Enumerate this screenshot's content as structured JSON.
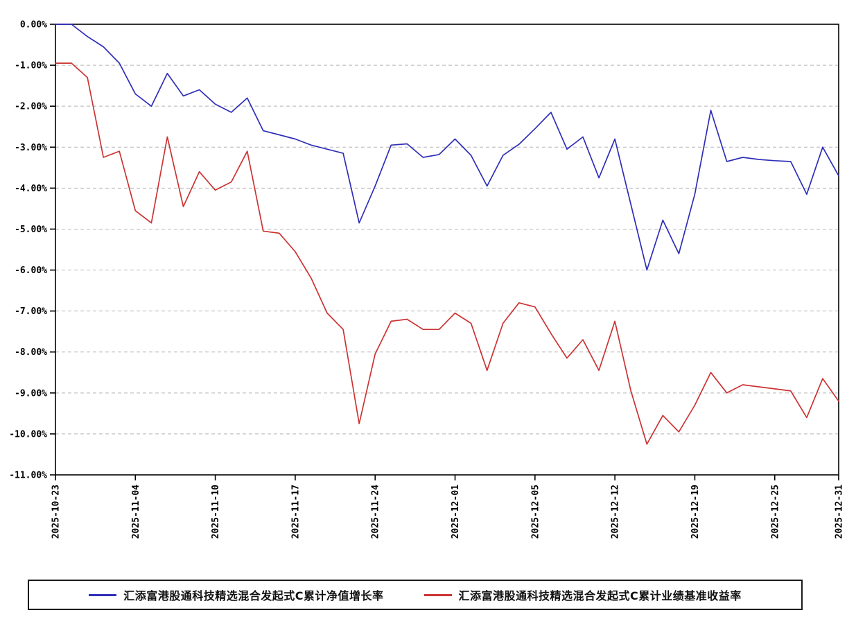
{
  "chart_data": {
    "type": "line",
    "title": "",
    "xlabel": "",
    "ylabel": "",
    "ylim": [
      -11,
      0
    ],
    "grid": "horizontal-dashed",
    "legend_position": "bottom-boxed",
    "y_tick_labels": [
      "0.00%",
      "-1.00%",
      "-2.00%",
      "-3.00%",
      "-4.00%",
      "-5.00%",
      "-6.00%",
      "-7.00%",
      "-8.00%",
      "-9.00%",
      "-10.00%",
      "-11.00%"
    ],
    "y_tick_values": [
      0,
      -1,
      -2,
      -3,
      -4,
      -5,
      -6,
      -7,
      -8,
      -9,
      -10,
      -11
    ],
    "x_tick_labels": [
      "2025-10-23",
      "2025-11-04",
      "2025-11-10",
      "2025-11-17",
      "2025-11-24",
      "2025-12-01",
      "2025-12-05",
      "2025-12-12",
      "2025-12-19",
      "2025-12-25",
      "2025-12-31"
    ],
    "x_tick_indices": [
      0,
      5,
      10,
      15,
      20,
      25,
      30,
      35,
      40,
      45,
      49
    ],
    "n_points": 50,
    "series": [
      {
        "name": "汇添富港股通科技精选混合发起式C累计净值增长率",
        "color": "#2e2eb8",
        "values": [
          0.0,
          0.0,
          -0.3,
          -0.55,
          -0.95,
          -1.7,
          -2.0,
          -1.2,
          -1.75,
          -1.6,
          -1.95,
          -2.15,
          -1.8,
          -2.6,
          -2.7,
          -2.8,
          -2.95,
          -3.05,
          -3.15,
          -4.85,
          -3.95,
          -2.95,
          -2.92,
          -3.25,
          -3.18,
          -2.8,
          -3.2,
          -3.95,
          -3.2,
          -2.93,
          -2.55,
          -2.15,
          -3.05,
          -2.75,
          -3.75,
          -2.8,
          -4.4,
          -6.0,
          -4.78,
          -5.6,
          -4.15,
          -2.1,
          -3.35,
          -3.25,
          -3.3,
          -3.33,
          -3.35,
          -4.15,
          -3.0,
          -3.7
        ]
      },
      {
        "name": "汇添富港股通科技精选混合发起式C累计业绩基准收益率",
        "color": "#cc3333",
        "values": [
          -0.95,
          -0.95,
          -1.3,
          -3.25,
          -3.1,
          -4.55,
          -4.85,
          -2.75,
          -4.45,
          -3.6,
          -4.05,
          -3.85,
          -3.1,
          -5.05,
          -5.1,
          -5.55,
          -6.2,
          -7.05,
          -7.45,
          -9.75,
          -8.05,
          -7.25,
          -7.2,
          -7.45,
          -7.45,
          -7.05,
          -7.3,
          -8.45,
          -7.3,
          -6.8,
          -6.9,
          -7.55,
          -8.15,
          -7.7,
          -8.45,
          -7.25,
          -8.95,
          -10.25,
          -9.55,
          -9.95,
          -9.3,
          -8.5,
          -9.0,
          -8.8,
          -8.85,
          -8.9,
          -8.95,
          -9.6,
          -8.65,
          -9.2
        ]
      }
    ],
    "plot_colors": {
      "border": "#000000",
      "gridline": "#b3b3b3",
      "background": "#ffffff"
    }
  },
  "legend": {
    "items": [
      {
        "label": "汇添富港股通科技精选混合发起式C累计净值增长率",
        "color": "#2e2eb8"
      },
      {
        "label": "汇添富港股通科技精选混合发起式C累计业绩基准收益率",
        "color": "#cc3333"
      }
    ]
  }
}
